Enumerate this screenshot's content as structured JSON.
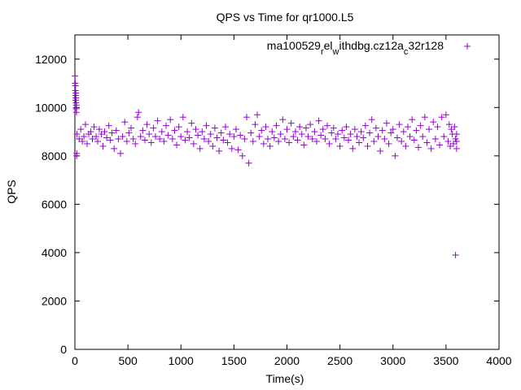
{
  "chart_data": {
    "type": "scatter",
    "title": "QPS vs Time for qr1000.L5",
    "xlabel": "Time(s)",
    "ylabel": "QPS",
    "xlim": [
      0,
      4000
    ],
    "ylim": [
      0,
      13000
    ],
    "xticks": [
      "0",
      "500",
      "1000",
      "1500",
      "2000",
      "2500",
      "3000",
      "3500",
      "4000"
    ],
    "yticks": [
      "0",
      "2000",
      "4000",
      "6000",
      "8000",
      "10000",
      "12000"
    ],
    "grid": false,
    "legend_position": "top-right",
    "marker": "plus",
    "color": "#9400d3",
    "series": [
      {
        "name_parts": [
          {
            "text": "ma100529",
            "shift": "none"
          },
          {
            "text": "r",
            "shift": "sub"
          },
          {
            "text": "el",
            "shift": "none"
          },
          {
            "text": "w",
            "shift": "sub"
          },
          {
            "text": "ithdbg.cz12a",
            "shift": "none"
          },
          {
            "text": "c",
            "shift": "sub"
          },
          {
            "text": "32r128",
            "shift": "none"
          }
        ],
        "points": [
          [
            2,
            11300
          ],
          [
            4,
            11000
          ],
          [
            5,
            10700
          ],
          [
            6,
            10900
          ],
          [
            7,
            10500
          ],
          [
            8,
            10300
          ],
          [
            9,
            10600
          ],
          [
            10,
            10400
          ],
          [
            11,
            10000
          ],
          [
            12,
            10200
          ],
          [
            13,
            9950
          ],
          [
            14,
            10100
          ],
          [
            15,
            9800
          ],
          [
            16,
            8000
          ],
          [
            18,
            8100
          ],
          [
            3590,
            3900
          ],
          [
            20,
            8900
          ],
          [
            40,
            8700
          ],
          [
            55,
            9100
          ],
          [
            70,
            8600
          ],
          [
            85,
            8800
          ],
          [
            100,
            9300
          ],
          [
            115,
            8500
          ],
          [
            130,
            8900
          ],
          [
            150,
            9000
          ],
          [
            165,
            8700
          ],
          [
            180,
            9200
          ],
          [
            200,
            8800
          ],
          [
            215,
            8600
          ],
          [
            230,
            9100
          ],
          [
            250,
            8900
          ],
          [
            265,
            8400
          ],
          [
            280,
            9000
          ],
          [
            300,
            8750
          ],
          [
            320,
            9250
          ],
          [
            335,
            8650
          ],
          [
            350,
            8950
          ],
          [
            370,
            8300
          ],
          [
            390,
            9050
          ],
          [
            410,
            8700
          ],
          [
            430,
            8100
          ],
          [
            450,
            8800
          ],
          [
            470,
            9400
          ],
          [
            490,
            8600
          ],
          [
            510,
            8950
          ],
          [
            530,
            9150
          ],
          [
            550,
            8700
          ],
          [
            570,
            8500
          ],
          [
            590,
            9600
          ],
          [
            600,
            9800
          ],
          [
            620,
            8800
          ],
          [
            640,
            9050
          ],
          [
            660,
            8650
          ],
          [
            680,
            9300
          ],
          [
            700,
            8900
          ],
          [
            720,
            8550
          ],
          [
            740,
            9150
          ],
          [
            760,
            8800
          ],
          [
            780,
            9450
          ],
          [
            800,
            8700
          ],
          [
            820,
            9000
          ],
          [
            840,
            8600
          ],
          [
            860,
            9250
          ],
          [
            880,
            8850
          ],
          [
            900,
            9500
          ],
          [
            920,
            8700
          ],
          [
            940,
            9050
          ],
          [
            960,
            8450
          ],
          [
            980,
            9200
          ],
          [
            1000,
            8800
          ],
          [
            1020,
            9600
          ],
          [
            1040,
            8650
          ],
          [
            1060,
            9000
          ],
          [
            1080,
            8750
          ],
          [
            1100,
            9350
          ],
          [
            1120,
            8500
          ],
          [
            1140,
            9100
          ],
          [
            1160,
            8850
          ],
          [
            1180,
            8300
          ],
          [
            1200,
            9000
          ],
          [
            1220,
            8700
          ],
          [
            1240,
            9250
          ],
          [
            1260,
            8600
          ],
          [
            1280,
            8900
          ],
          [
            1300,
            8400
          ],
          [
            1320,
            9150
          ],
          [
            1340,
            8750
          ],
          [
            1360,
            8200
          ],
          [
            1380,
            8950
          ],
          [
            1400,
            8650
          ],
          [
            1420,
            9200
          ],
          [
            1440,
            8550
          ],
          [
            1460,
            8900
          ],
          [
            1480,
            8300
          ],
          [
            1500,
            8800
          ],
          [
            1520,
            9100
          ],
          [
            1540,
            8250
          ],
          [
            1560,
            8850
          ],
          [
            1580,
            8000
          ],
          [
            1600,
            8700
          ],
          [
            1620,
            9600
          ],
          [
            1640,
            7700
          ],
          [
            1660,
            8950
          ],
          [
            1680,
            8600
          ],
          [
            1700,
            9300
          ],
          [
            1720,
            9700
          ],
          [
            1740,
            8800
          ],
          [
            1760,
            9050
          ],
          [
            1780,
            8500
          ],
          [
            1800,
            9200
          ],
          [
            1820,
            8700
          ],
          [
            1840,
            8400
          ],
          [
            1860,
            9000
          ],
          [
            1880,
            8750
          ],
          [
            1900,
            9250
          ],
          [
            1920,
            8600
          ],
          [
            1940,
            8900
          ],
          [
            1960,
            9500
          ],
          [
            1980,
            8700
          ],
          [
            2000,
            9100
          ],
          [
            2020,
            8550
          ],
          [
            2040,
            9350
          ],
          [
            2060,
            8800
          ],
          [
            2080,
            9000
          ],
          [
            2100,
            8650
          ],
          [
            2120,
            9200
          ],
          [
            2140,
            8900
          ],
          [
            2160,
            8450
          ],
          [
            2180,
            9150
          ],
          [
            2200,
            8800
          ],
          [
            2220,
            9300
          ],
          [
            2240,
            8700
          ],
          [
            2260,
            9000
          ],
          [
            2280,
            8600
          ],
          [
            2300,
            9450
          ],
          [
            2320,
            8850
          ],
          [
            2340,
            9100
          ],
          [
            2360,
            8700
          ],
          [
            2380,
            9250
          ],
          [
            2400,
            8500
          ],
          [
            2420,
            8950
          ],
          [
            2440,
            9150
          ],
          [
            2460,
            8700
          ],
          [
            2480,
            8900
          ],
          [
            2500,
            8400
          ],
          [
            2520,
            9050
          ],
          [
            2540,
            8750
          ],
          [
            2560,
            9200
          ],
          [
            2580,
            8650
          ],
          [
            2600,
            8900
          ],
          [
            2620,
            8300
          ],
          [
            2640,
            9100
          ],
          [
            2660,
            8800
          ],
          [
            2680,
            8550
          ],
          [
            2700,
            9000
          ],
          [
            2720,
            8750
          ],
          [
            2740,
            9250
          ],
          [
            2760,
            8400
          ],
          [
            2780,
            8950
          ],
          [
            2800,
            9500
          ],
          [
            2820,
            8600
          ],
          [
            2840,
            9150
          ],
          [
            2860,
            8800
          ],
          [
            2880,
            8200
          ],
          [
            2900,
            9050
          ],
          [
            2920,
            8700
          ],
          [
            2940,
            9350
          ],
          [
            2960,
            8500
          ],
          [
            2980,
            8950
          ],
          [
            3000,
            9100
          ],
          [
            3020,
            8000
          ],
          [
            3040,
            8750
          ],
          [
            3060,
            9300
          ],
          [
            3080,
            8600
          ],
          [
            3100,
            9000
          ],
          [
            3120,
            8400
          ],
          [
            3140,
            9200
          ],
          [
            3160,
            8800
          ],
          [
            3180,
            9500
          ],
          [
            3200,
            8650
          ],
          [
            3220,
            9050
          ],
          [
            3240,
            8350
          ],
          [
            3260,
            9250
          ],
          [
            3280,
            8800
          ],
          [
            3300,
            9600
          ],
          [
            3320,
            8550
          ],
          [
            3340,
            9100
          ],
          [
            3360,
            8300
          ],
          [
            3380,
            9400
          ],
          [
            3400,
            8700
          ],
          [
            3420,
            9200
          ],
          [
            3440,
            8450
          ],
          [
            3460,
            9600
          ],
          [
            3480,
            8800
          ],
          [
            3500,
            9700
          ],
          [
            3520,
            8600
          ],
          [
            3530,
            9300
          ],
          [
            3540,
            8400
          ],
          [
            3550,
            9100
          ],
          [
            3560,
            8900
          ],
          [
            3570,
            8500
          ],
          [
            3580,
            9200
          ],
          [
            3590,
            8700
          ],
          [
            3600,
            8900
          ],
          [
            3600,
            8600
          ],
          [
            3600,
            8300
          ]
        ]
      }
    ]
  }
}
